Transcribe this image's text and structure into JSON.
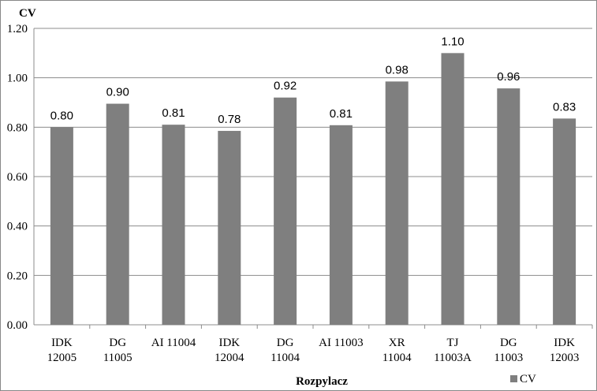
{
  "chart_data": {
    "type": "bar",
    "title": "",
    "ylabel": "CV",
    "xlabel": "Rozpylacz",
    "categories": [
      [
        "IDK",
        "12005"
      ],
      [
        "DG",
        "11005"
      ],
      [
        "AI 11004"
      ],
      [
        "IDK",
        "12004"
      ],
      [
        "DG",
        "11004"
      ],
      [
        "AI 11003"
      ],
      [
        "XR",
        "11004"
      ],
      [
        "TJ",
        "11003A"
      ],
      [
        "DG",
        "11003"
      ],
      [
        "IDK",
        "12003"
      ]
    ],
    "series": [
      {
        "name": "CV",
        "values": [
          0.8,
          0.895,
          0.81,
          0.785,
          0.92,
          0.808,
          0.985,
          1.1,
          0.957,
          0.835
        ],
        "labels": [
          "0.80",
          "0.90",
          "0.81",
          "0.78",
          "0.92",
          "0.81",
          "0.98",
          "1.10",
          "0.96",
          "0.83"
        ],
        "color": "#7f7f7f"
      }
    ],
    "ylim": [
      0,
      1.2
    ],
    "yticks": [
      0,
      0.2,
      0.4,
      0.6,
      0.8,
      1.0,
      1.2
    ],
    "ytick_labels": [
      "0.00",
      "0.20",
      "0.40",
      "0.60",
      "0.80",
      "1.00",
      "1.20"
    ],
    "grid": true,
    "legend_position": "bottom-right",
    "gridline_color": "#8c8c8c"
  }
}
